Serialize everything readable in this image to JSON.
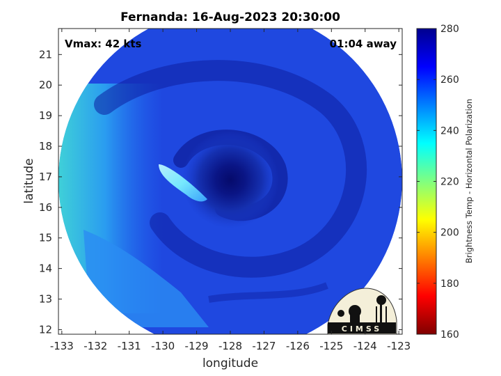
{
  "chart_data": {
    "type": "heatmap",
    "title": "Fernanda: 16-Aug-2023 20:30:00",
    "xlabel": "longitude",
    "ylabel": "latitude",
    "xlim": [
      -133.1,
      -122.9
    ],
    "ylim": [
      11.85,
      21.85
    ],
    "xticks": [
      -133,
      -132,
      -131,
      -130,
      -129,
      -128,
      -127,
      -126,
      -125,
      -124,
      -123
    ],
    "yticks": [
      12,
      13,
      14,
      15,
      16,
      17,
      18,
      19,
      20,
      21
    ],
    "annotations": {
      "left": "Vmax: 42 kts",
      "right": "01:04 away"
    },
    "storm_center": {
      "lon": -128.0,
      "lat": 16.9
    },
    "swath_center": {
      "lon": -128.0,
      "lat": 16.9
    },
    "swath_radius_deg": 5.1,
    "grid": false,
    "colorbar": {
      "label": "Brightness Temp - Horizontal Polarization",
      "min": 160,
      "max": 280,
      "ticks": [
        160,
        180,
        200,
        220,
        240,
        260,
        280
      ],
      "colormap": "jet",
      "colors": [
        "#800000",
        "#ff0000",
        "#ff8000",
        "#ffff00",
        "#80ff80",
        "#00ffff",
        "#0080ff",
        "#0000ff",
        "#00008f"
      ]
    },
    "logo": "CIMSS"
  }
}
